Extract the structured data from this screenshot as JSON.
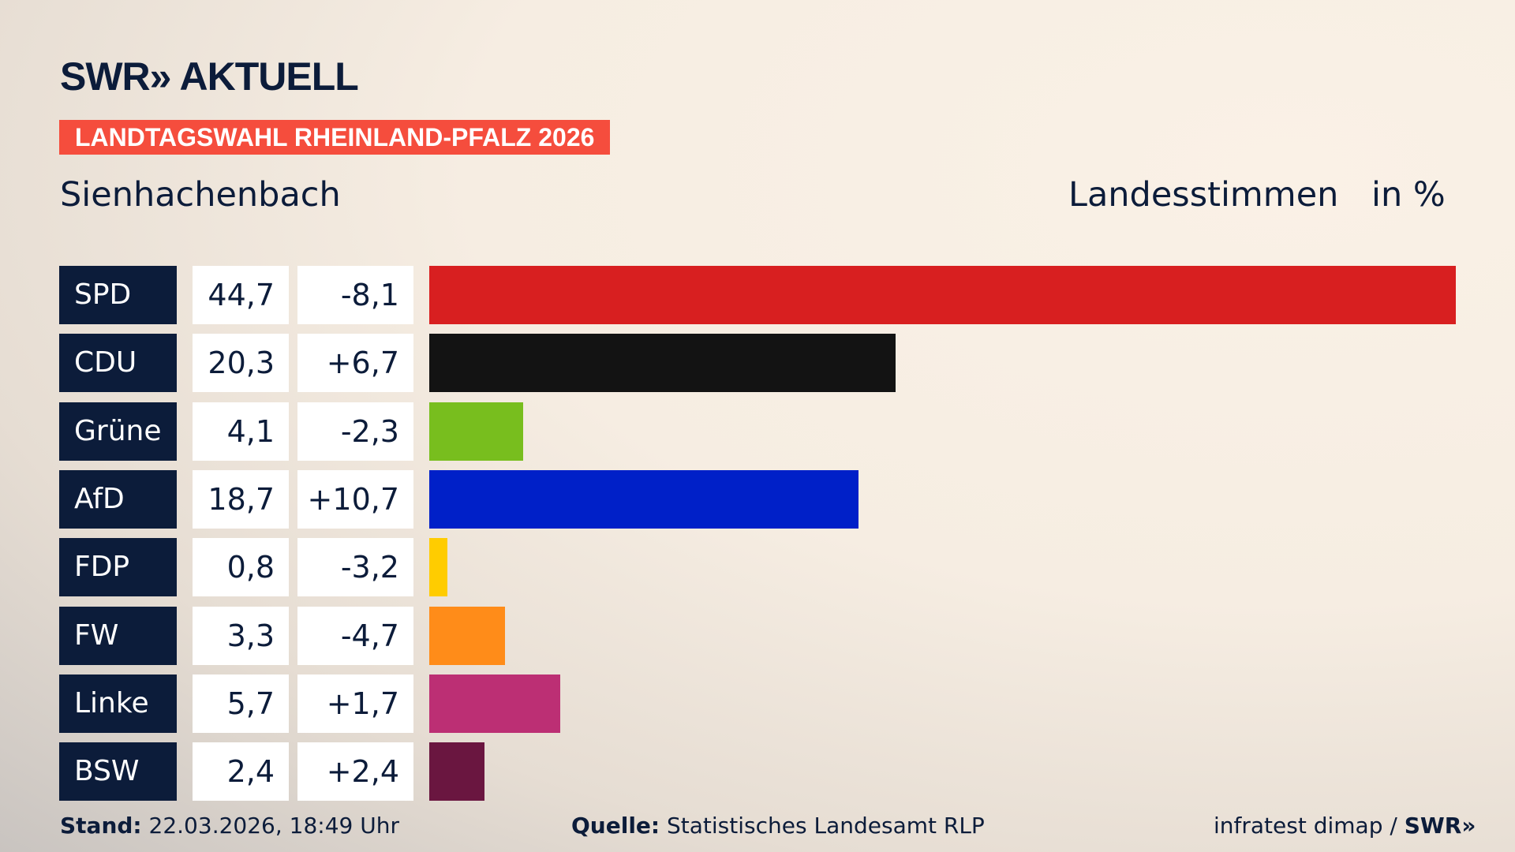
{
  "header": {
    "logo": "SWR» AKTUELL",
    "banner": "LANDTAGSWAHL RHEINLAND-PFALZ 2026",
    "region": "Sienhachenbach",
    "measure": "Landesstimmen",
    "unit": "in %"
  },
  "chart_data": {
    "type": "bar",
    "orientation": "horizontal",
    "categories": [
      "SPD",
      "CDU",
      "Grüne",
      "AfD",
      "FDP",
      "FW",
      "Linke",
      "BSW"
    ],
    "values": [
      44.7,
      20.3,
      4.1,
      18.7,
      0.8,
      3.3,
      5.7,
      2.4
    ],
    "value_labels": [
      "44,7",
      "20,3",
      "4,1",
      "18,7",
      "0,8",
      "3,3",
      "5,7",
      "2,4"
    ],
    "change_labels": [
      "-8,1",
      "+6,7",
      "-2,3",
      "+10,7",
      "-3,2",
      "-4,7",
      "+1,7",
      "+2,4"
    ],
    "colors": [
      "#d81f20",
      "#131313",
      "#78be1e",
      "#0020c8",
      "#ffcc00",
      "#ff8c19",
      "#bc2f74",
      "#6a1640"
    ],
    "xlim": [
      0,
      44.7
    ],
    "grid": false
  },
  "footer": {
    "stand_label": "Stand:",
    "stand": "22.03.2026, 18:49 Uhr",
    "source_label": "Quelle:",
    "source": "Statistisches Landesamt RLP",
    "credit": "infratest dimap / ",
    "credit_logo": "SWR»"
  }
}
